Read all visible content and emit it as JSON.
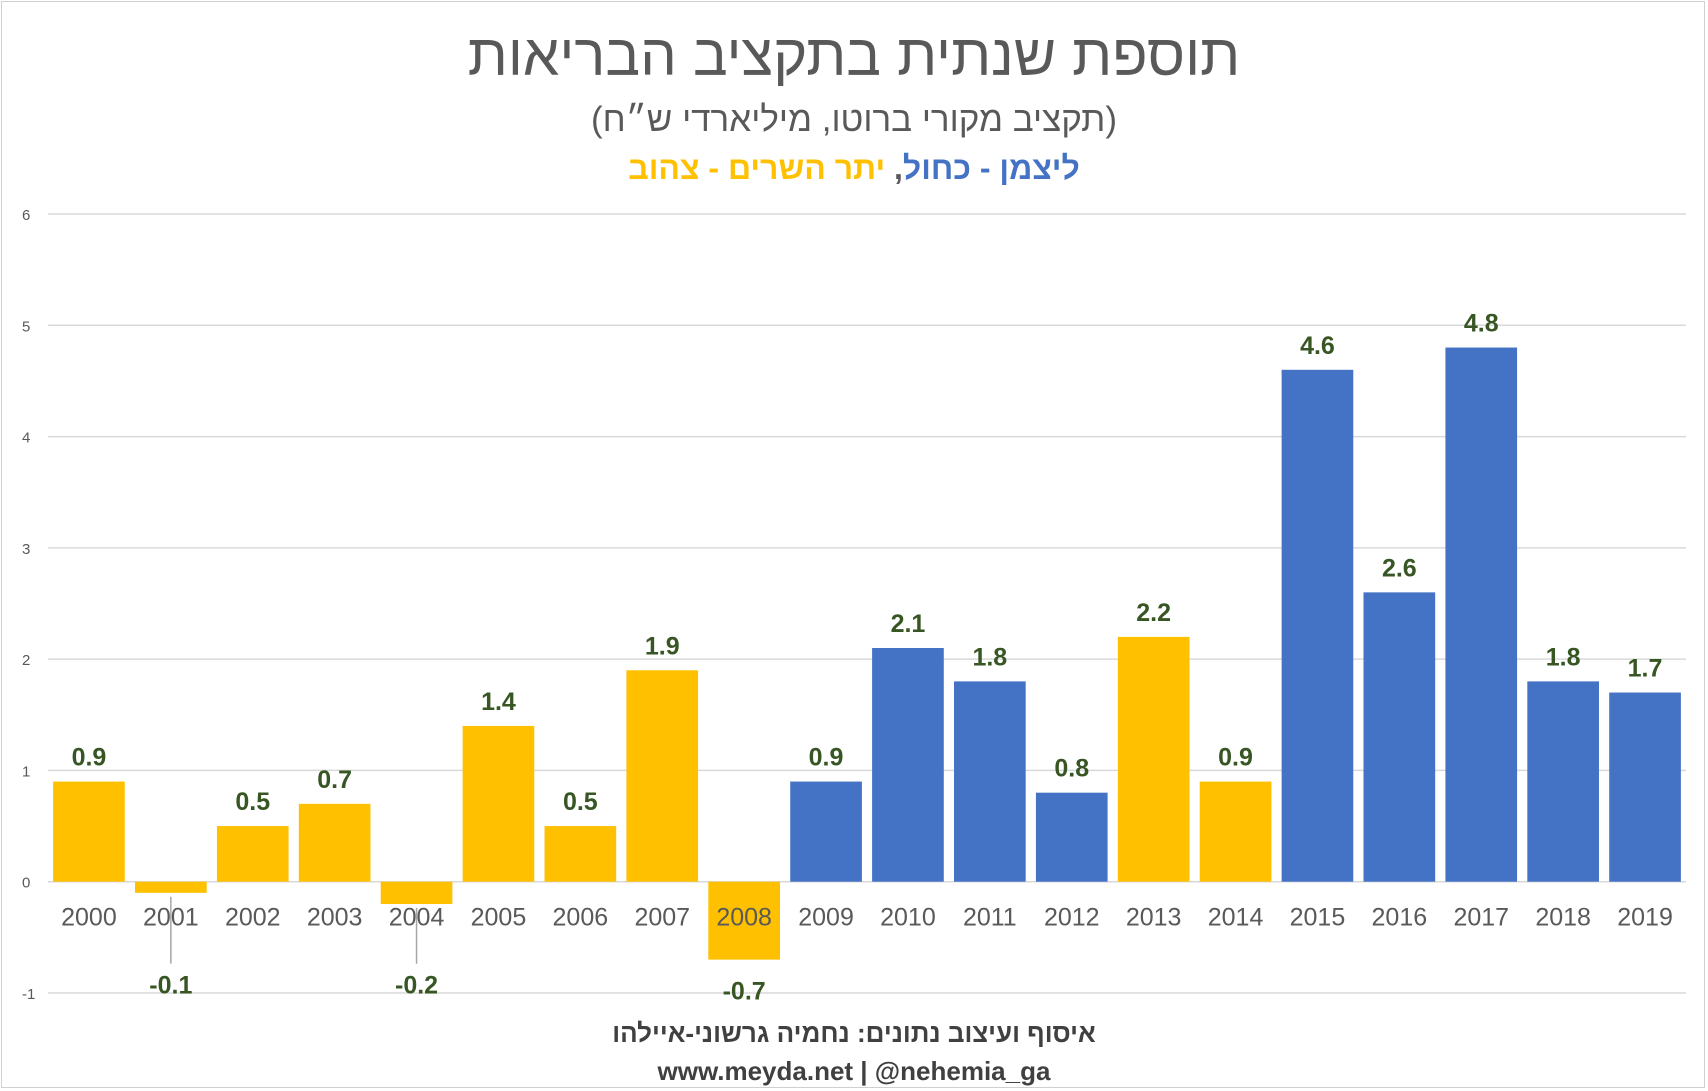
{
  "header": {
    "title": "תוספת שנתית בתקציב הבריאות",
    "subtitle": "(תקציב מקורי ברוטו, מיליארדי ש״ח)",
    "legend_blue": "ליצמן - כחול",
    "legend_separator": ",",
    "legend_yellow": "יתר השרים - צהוב"
  },
  "footer": {
    "credit_line": "איסוף ועיצוב נתונים: נחמיה גרשוני-איילהו",
    "web_line": "www.meyda.net | @nehemia_ga"
  },
  "colors": {
    "blue": "#4472C4",
    "yellow": "#FFC000",
    "label": "#375623",
    "grid": "#D9D9D9",
    "axis_text": "#595959"
  },
  "chart_data": {
    "type": "bar",
    "title": "תוספת שנתית בתקציב הבריאות",
    "subtitle": "(תקציב מקורי ברוטו, מיליארדי ש״ח)",
    "xlabel": "",
    "ylabel": "",
    "ylim": [
      -1,
      6
    ],
    "yticks": [
      "-1",
      "0",
      "1",
      "2",
      "3",
      "4",
      "5",
      "6"
    ],
    "grid": true,
    "categories": [
      "2000",
      "2001",
      "2002",
      "2003",
      "2004",
      "2005",
      "2006",
      "2007",
      "2008",
      "2009",
      "2010",
      "2011",
      "2012",
      "2013",
      "2014",
      "2015",
      "2016",
      "2017",
      "2018",
      "2019"
    ],
    "values": [
      0.9,
      -0.1,
      0.5,
      0.7,
      -0.2,
      1.4,
      0.5,
      1.9,
      -0.7,
      0.9,
      2.1,
      1.8,
      0.8,
      2.2,
      0.9,
      4.6,
      2.6,
      4.8,
      1.8,
      1.7
    ],
    "labels": [
      "0.9",
      "-0.1",
      "0.5",
      "0.7",
      "-0.2",
      "1.4",
      "0.5",
      "1.9",
      "-0.7",
      "0.9",
      "2.1",
      "1.8",
      "0.8",
      "2.2",
      "0.9",
      "4.6",
      "2.6",
      "4.8",
      "1.8",
      "1.7"
    ],
    "minister": [
      "yellow",
      "yellow",
      "yellow",
      "yellow",
      "yellow",
      "yellow",
      "yellow",
      "yellow",
      "yellow",
      "blue",
      "blue",
      "blue",
      "blue",
      "yellow",
      "yellow",
      "blue",
      "blue",
      "blue",
      "blue",
      "blue"
    ],
    "series_legend": [
      {
        "name": "ליצמן - כחול",
        "color": "blue"
      },
      {
        "name": "יתר השרים - צהוב",
        "color": "yellow"
      }
    ]
  }
}
